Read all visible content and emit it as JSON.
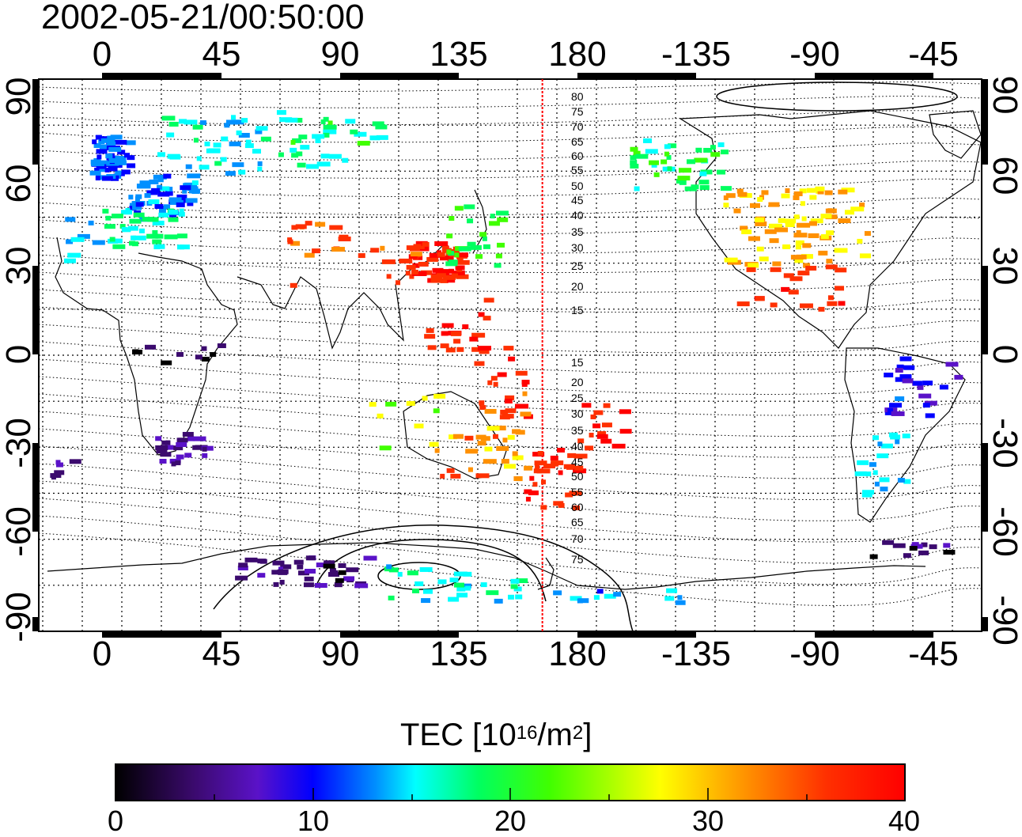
{
  "title": "2002-05-21/00:50:00",
  "map": {
    "lon_labels": [
      "0",
      "45",
      "90",
      "135",
      "180",
      "-135",
      "-90",
      "-45"
    ],
    "lat_labels": [
      "90",
      "60",
      "30",
      "0",
      "-30",
      "-60",
      "-90"
    ],
    "contour_labels": [
      "80",
      "75",
      "70",
      "65",
      "60",
      "55",
      "50",
      "45",
      "40",
      "35",
      "30",
      "25",
      "20",
      "15",
      "15",
      "20",
      "25",
      "30",
      "35",
      "40",
      "45",
      "50",
      "55",
      "60",
      "65",
      "70",
      "75"
    ],
    "meridian_marker_lon": 167
  },
  "colorbar": {
    "label_text": "TEC  [10",
    "label_exp": "16",
    "label_unit": "/m",
    "label_unit_exp": "2",
    "label_close": "]",
    "ticks": [
      "0",
      "10",
      "20",
      "30",
      "40"
    ],
    "min": 0,
    "max": 40,
    "colors": [
      "#000000",
      "#3b0a6e",
      "#5a12c8",
      "#0000ff",
      "#0090ff",
      "#00ffff",
      "#00ff60",
      "#40ff00",
      "#ffff00",
      "#ff9000",
      "#ff3000",
      "#ff0000"
    ]
  }
}
